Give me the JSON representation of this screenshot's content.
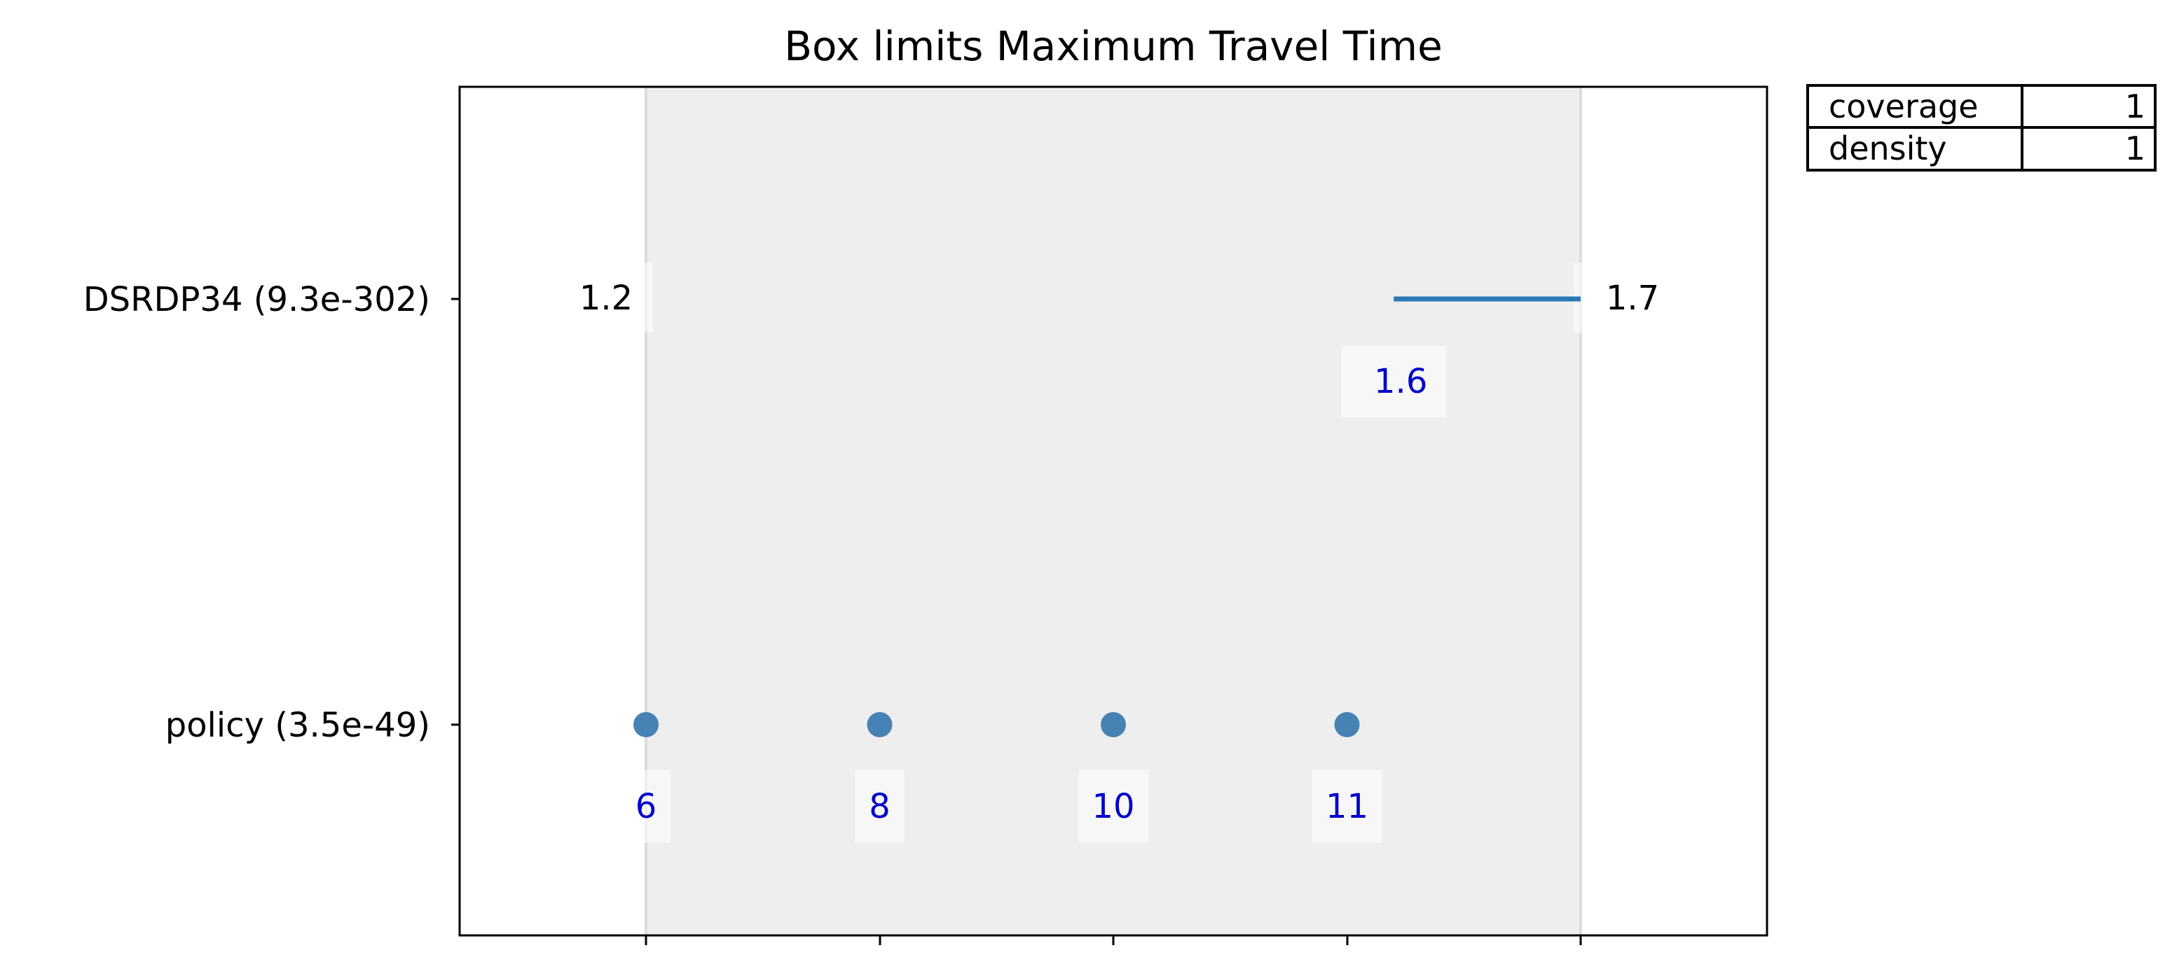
{
  "chart_data": {
    "type": "scatter",
    "title": "Box limits Maximum Travel Time",
    "variables": [
      {
        "label": "DSRDP34 (9.3e-302)",
        "kind": "continuous",
        "min_label": "1.2",
        "max_label": "1.7",
        "range": [
          1.2,
          1.7
        ],
        "box_range": [
          1.6,
          1.7
        ],
        "box_labels": [
          "1.6"
        ]
      },
      {
        "label": "policy (3.5e-49)",
        "kind": "categorical",
        "categories": [
          "6",
          "8",
          "10",
          "11"
        ]
      }
    ],
    "stats_table": [
      {
        "name": "coverage",
        "value": "1"
      },
      {
        "name": "density",
        "value": "1"
      }
    ],
    "colors": {
      "line": "#2a78b6",
      "points": "#4682b4",
      "shade": "#eeeeee",
      "value_label": "#0000cc"
    },
    "grid": false
  }
}
